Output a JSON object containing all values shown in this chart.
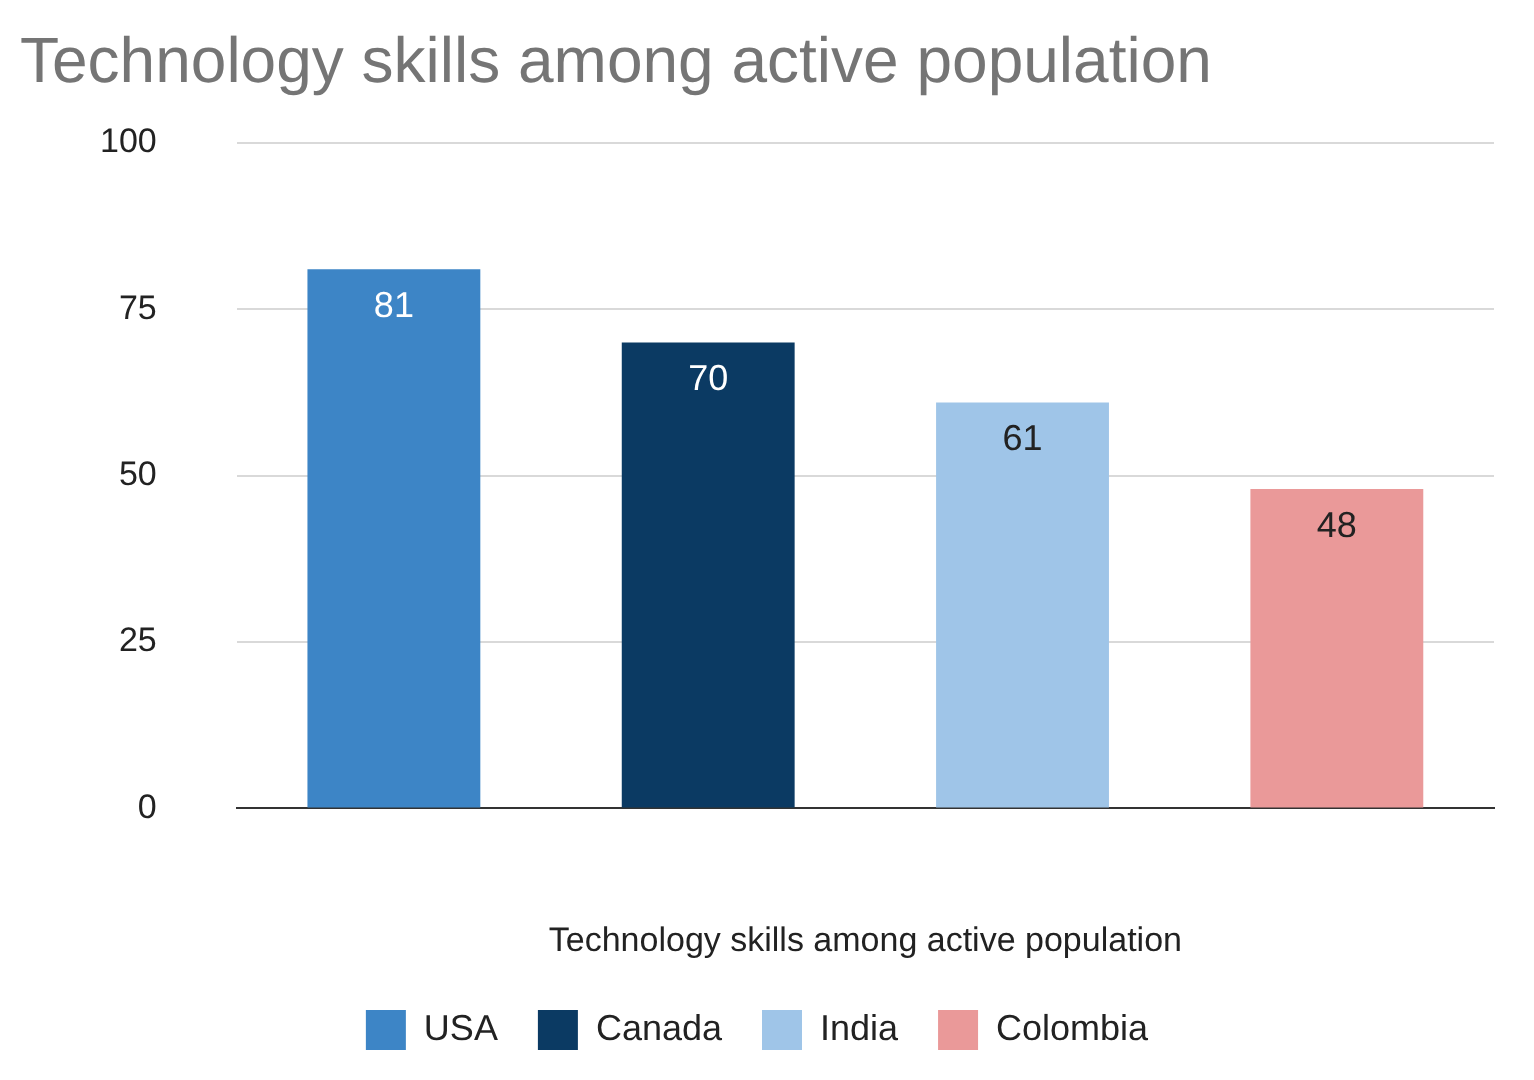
{
  "chart_data": {
    "type": "bar",
    "title": "Technology skills among active population",
    "xlabel": "Technology skills among active population",
    "categories": [
      null,
      null,
      null,
      null
    ],
    "series": [
      {
        "name": "USA",
        "color": "#3d85c6",
        "values": [
          81,
          null,
          null,
          null
        ]
      },
      {
        "name": "Canada",
        "color": "#0b3a63",
        "values": [
          null,
          70,
          null,
          null
        ]
      },
      {
        "name": "India",
        "color": "#9fc5e8",
        "values": [
          null,
          null,
          61,
          null
        ]
      },
      {
        "name": "Colombia",
        "color": "#ea9999",
        "values": [
          null,
          null,
          null,
          48
        ]
      }
    ],
    "ylim": [
      0,
      100
    ],
    "yticks": [
      0,
      25,
      50,
      75,
      100
    ],
    "grid": "y",
    "legend": "bottom",
    "data_labels": true
  }
}
